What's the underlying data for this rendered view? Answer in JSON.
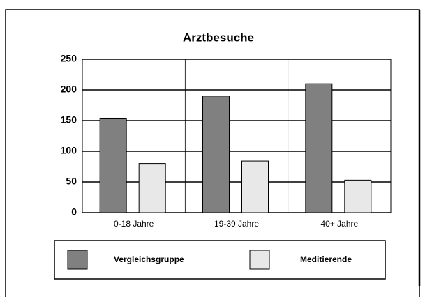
{
  "chart_data": {
    "type": "bar",
    "title": "Arztbesuche",
    "categories": [
      "0-18 Jahre",
      "19-39 Jahre",
      "40+ Jahre"
    ],
    "series": [
      {
        "name": "Vergleichsgruppe",
        "color": "#808080",
        "values": [
          154,
          190,
          210
        ]
      },
      {
        "name": "Meditierende",
        "color": "#e8e8e8",
        "values": [
          80,
          84,
          53
        ]
      }
    ],
    "ylim": [
      0,
      250
    ],
    "yticks": [
      0,
      50,
      100,
      150,
      200,
      250
    ],
    "grid": true
  }
}
